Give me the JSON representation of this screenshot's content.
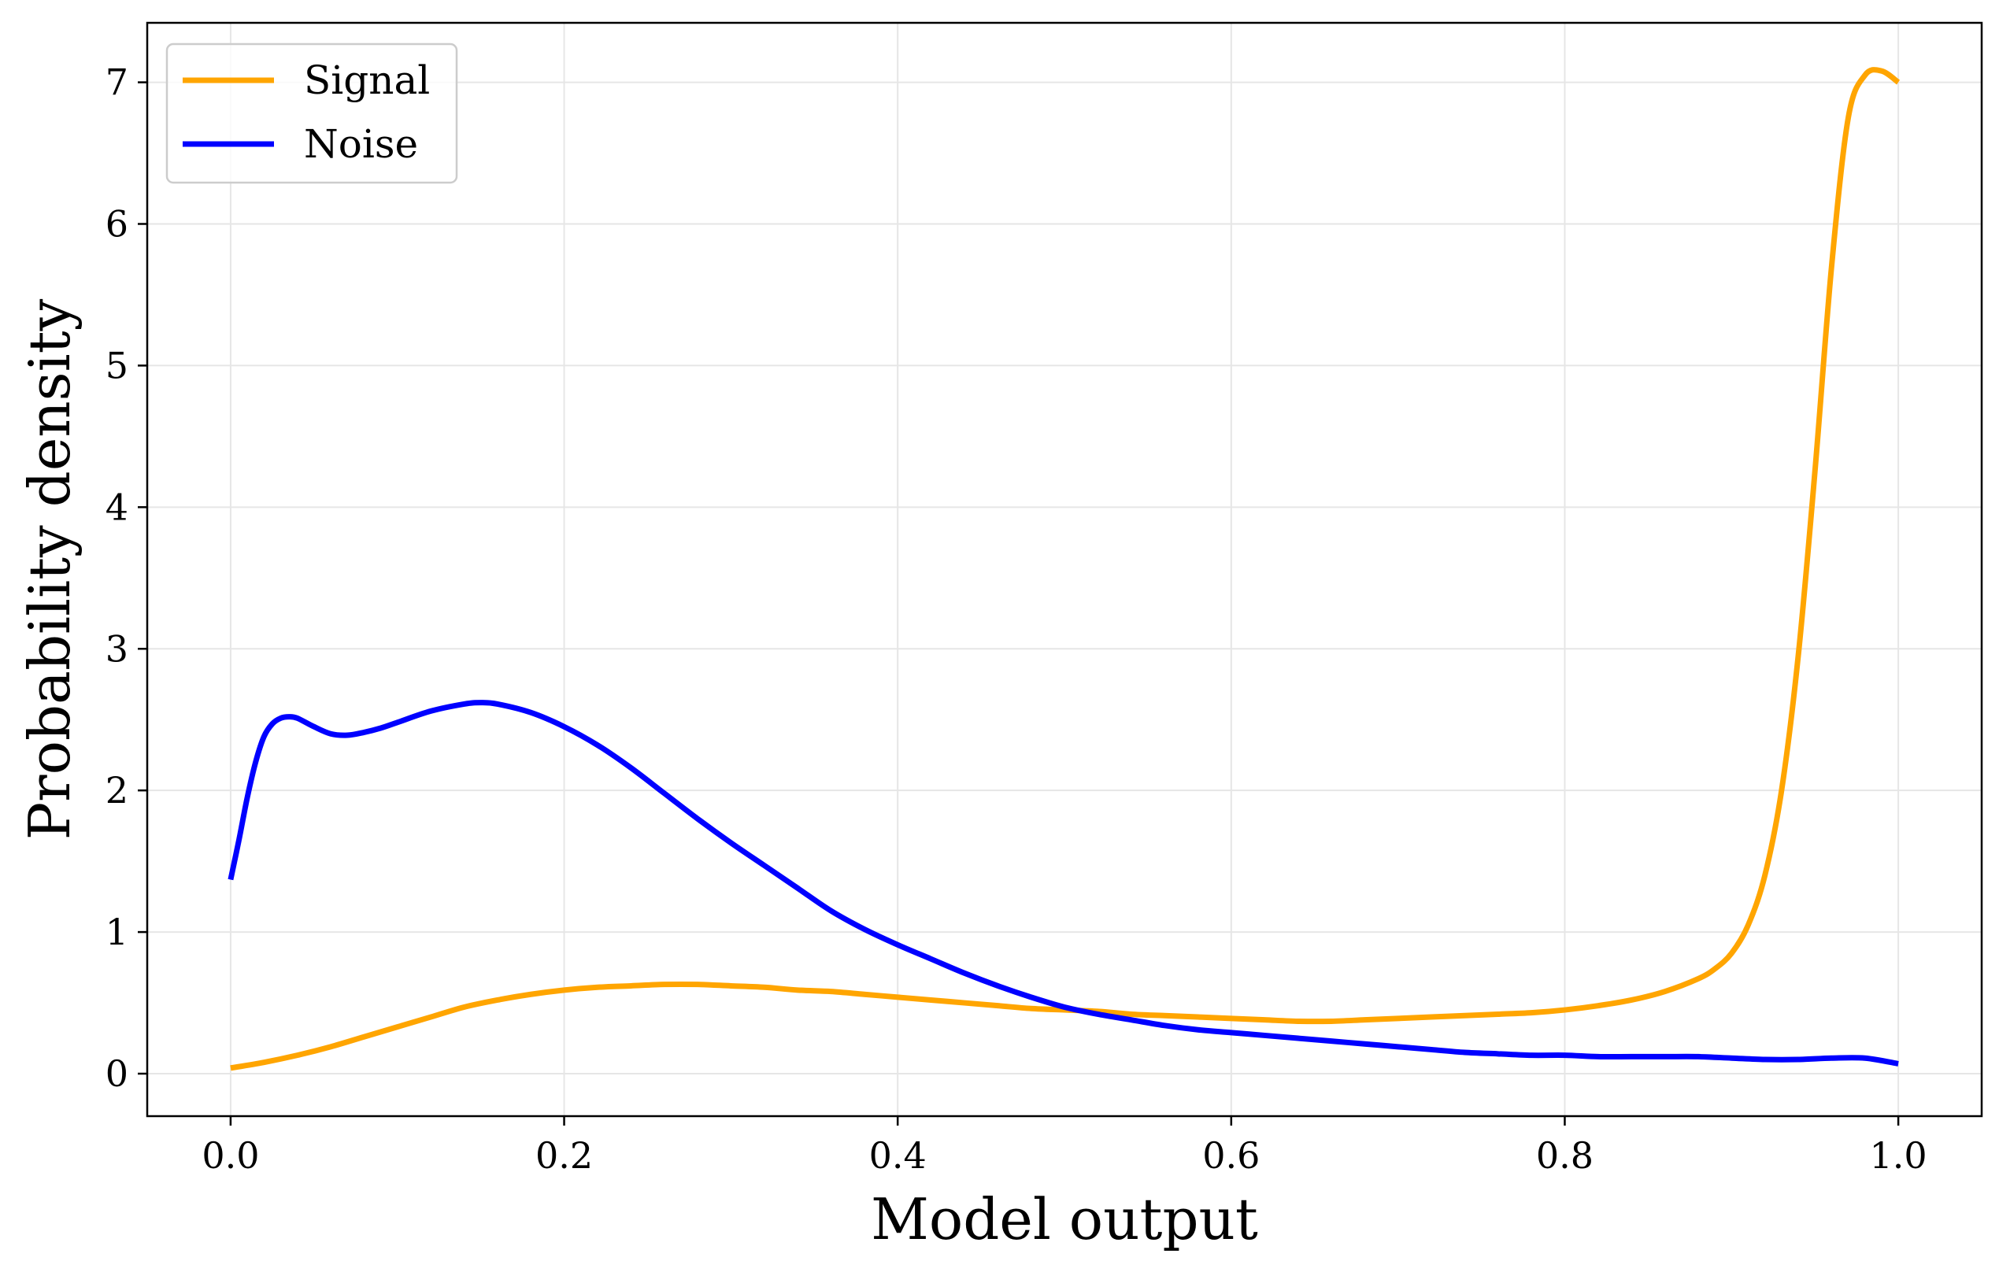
{
  "chart_data": {
    "type": "line",
    "title": "",
    "xlabel": "Model output",
    "ylabel": "Probability density",
    "xlim": [
      -0.05,
      1.05
    ],
    "ylim": [
      -0.3,
      7.42
    ],
    "xticks": [
      0.0,
      0.2,
      0.4,
      0.6,
      0.8,
      1.0
    ],
    "xtick_labels": [
      "0.0",
      "0.2",
      "0.4",
      "0.6",
      "0.8",
      "1.0"
    ],
    "yticks": [
      0,
      1,
      2,
      3,
      4,
      5,
      6,
      7
    ],
    "ytick_labels": [
      "0",
      "1",
      "2",
      "3",
      "4",
      "5",
      "6",
      "7"
    ],
    "grid": true,
    "legend_position": "top-left",
    "series": [
      {
        "name": "Signal",
        "color": "#FFA500",
        "x": [
          0.0,
          0.02,
          0.04,
          0.06,
          0.08,
          0.1,
          0.12,
          0.14,
          0.16,
          0.18,
          0.2,
          0.22,
          0.24,
          0.26,
          0.28,
          0.3,
          0.32,
          0.34,
          0.36,
          0.38,
          0.4,
          0.42,
          0.44,
          0.46,
          0.48,
          0.5,
          0.52,
          0.54,
          0.56,
          0.58,
          0.6,
          0.62,
          0.64,
          0.66,
          0.68,
          0.7,
          0.72,
          0.74,
          0.76,
          0.78,
          0.8,
          0.82,
          0.84,
          0.86,
          0.88,
          0.89,
          0.9,
          0.91,
          0.92,
          0.93,
          0.94,
          0.95,
          0.96,
          0.97,
          0.98,
          0.99,
          1.0
        ],
        "y": [
          0.04,
          0.08,
          0.13,
          0.19,
          0.26,
          0.33,
          0.4,
          0.47,
          0.52,
          0.56,
          0.59,
          0.61,
          0.62,
          0.63,
          0.63,
          0.62,
          0.61,
          0.59,
          0.58,
          0.56,
          0.54,
          0.52,
          0.5,
          0.48,
          0.46,
          0.45,
          0.44,
          0.42,
          0.41,
          0.4,
          0.39,
          0.38,
          0.37,
          0.37,
          0.38,
          0.39,
          0.4,
          0.41,
          0.42,
          0.43,
          0.45,
          0.48,
          0.52,
          0.58,
          0.67,
          0.74,
          0.85,
          1.05,
          1.4,
          2.0,
          2.95,
          4.25,
          5.7,
          6.75,
          7.05,
          7.08,
          7.0
        ]
      },
      {
        "name": "Noise",
        "color": "#0000FF",
        "x": [
          0.0,
          0.005,
          0.01,
          0.015,
          0.02,
          0.025,
          0.03,
          0.035,
          0.04,
          0.05,
          0.06,
          0.07,
          0.08,
          0.09,
          0.1,
          0.12,
          0.14,
          0.15,
          0.16,
          0.18,
          0.2,
          0.22,
          0.24,
          0.26,
          0.28,
          0.3,
          0.32,
          0.34,
          0.36,
          0.38,
          0.4,
          0.42,
          0.44,
          0.46,
          0.48,
          0.5,
          0.52,
          0.54,
          0.56,
          0.58,
          0.6,
          0.62,
          0.64,
          0.66,
          0.68,
          0.7,
          0.72,
          0.74,
          0.76,
          0.78,
          0.8,
          0.82,
          0.84,
          0.86,
          0.88,
          0.9,
          0.92,
          0.94,
          0.96,
          0.98,
          1.0
        ],
        "y": [
          1.37,
          1.65,
          1.95,
          2.2,
          2.38,
          2.47,
          2.51,
          2.52,
          2.51,
          2.45,
          2.4,
          2.39,
          2.41,
          2.44,
          2.48,
          2.56,
          2.61,
          2.62,
          2.61,
          2.55,
          2.45,
          2.32,
          2.16,
          1.98,
          1.8,
          1.63,
          1.47,
          1.31,
          1.15,
          1.02,
          0.91,
          0.81,
          0.71,
          0.62,
          0.54,
          0.47,
          0.42,
          0.38,
          0.34,
          0.31,
          0.29,
          0.27,
          0.25,
          0.23,
          0.21,
          0.19,
          0.17,
          0.15,
          0.14,
          0.13,
          0.13,
          0.12,
          0.12,
          0.12,
          0.12,
          0.11,
          0.1,
          0.1,
          0.11,
          0.11,
          0.07
        ]
      }
    ]
  }
}
